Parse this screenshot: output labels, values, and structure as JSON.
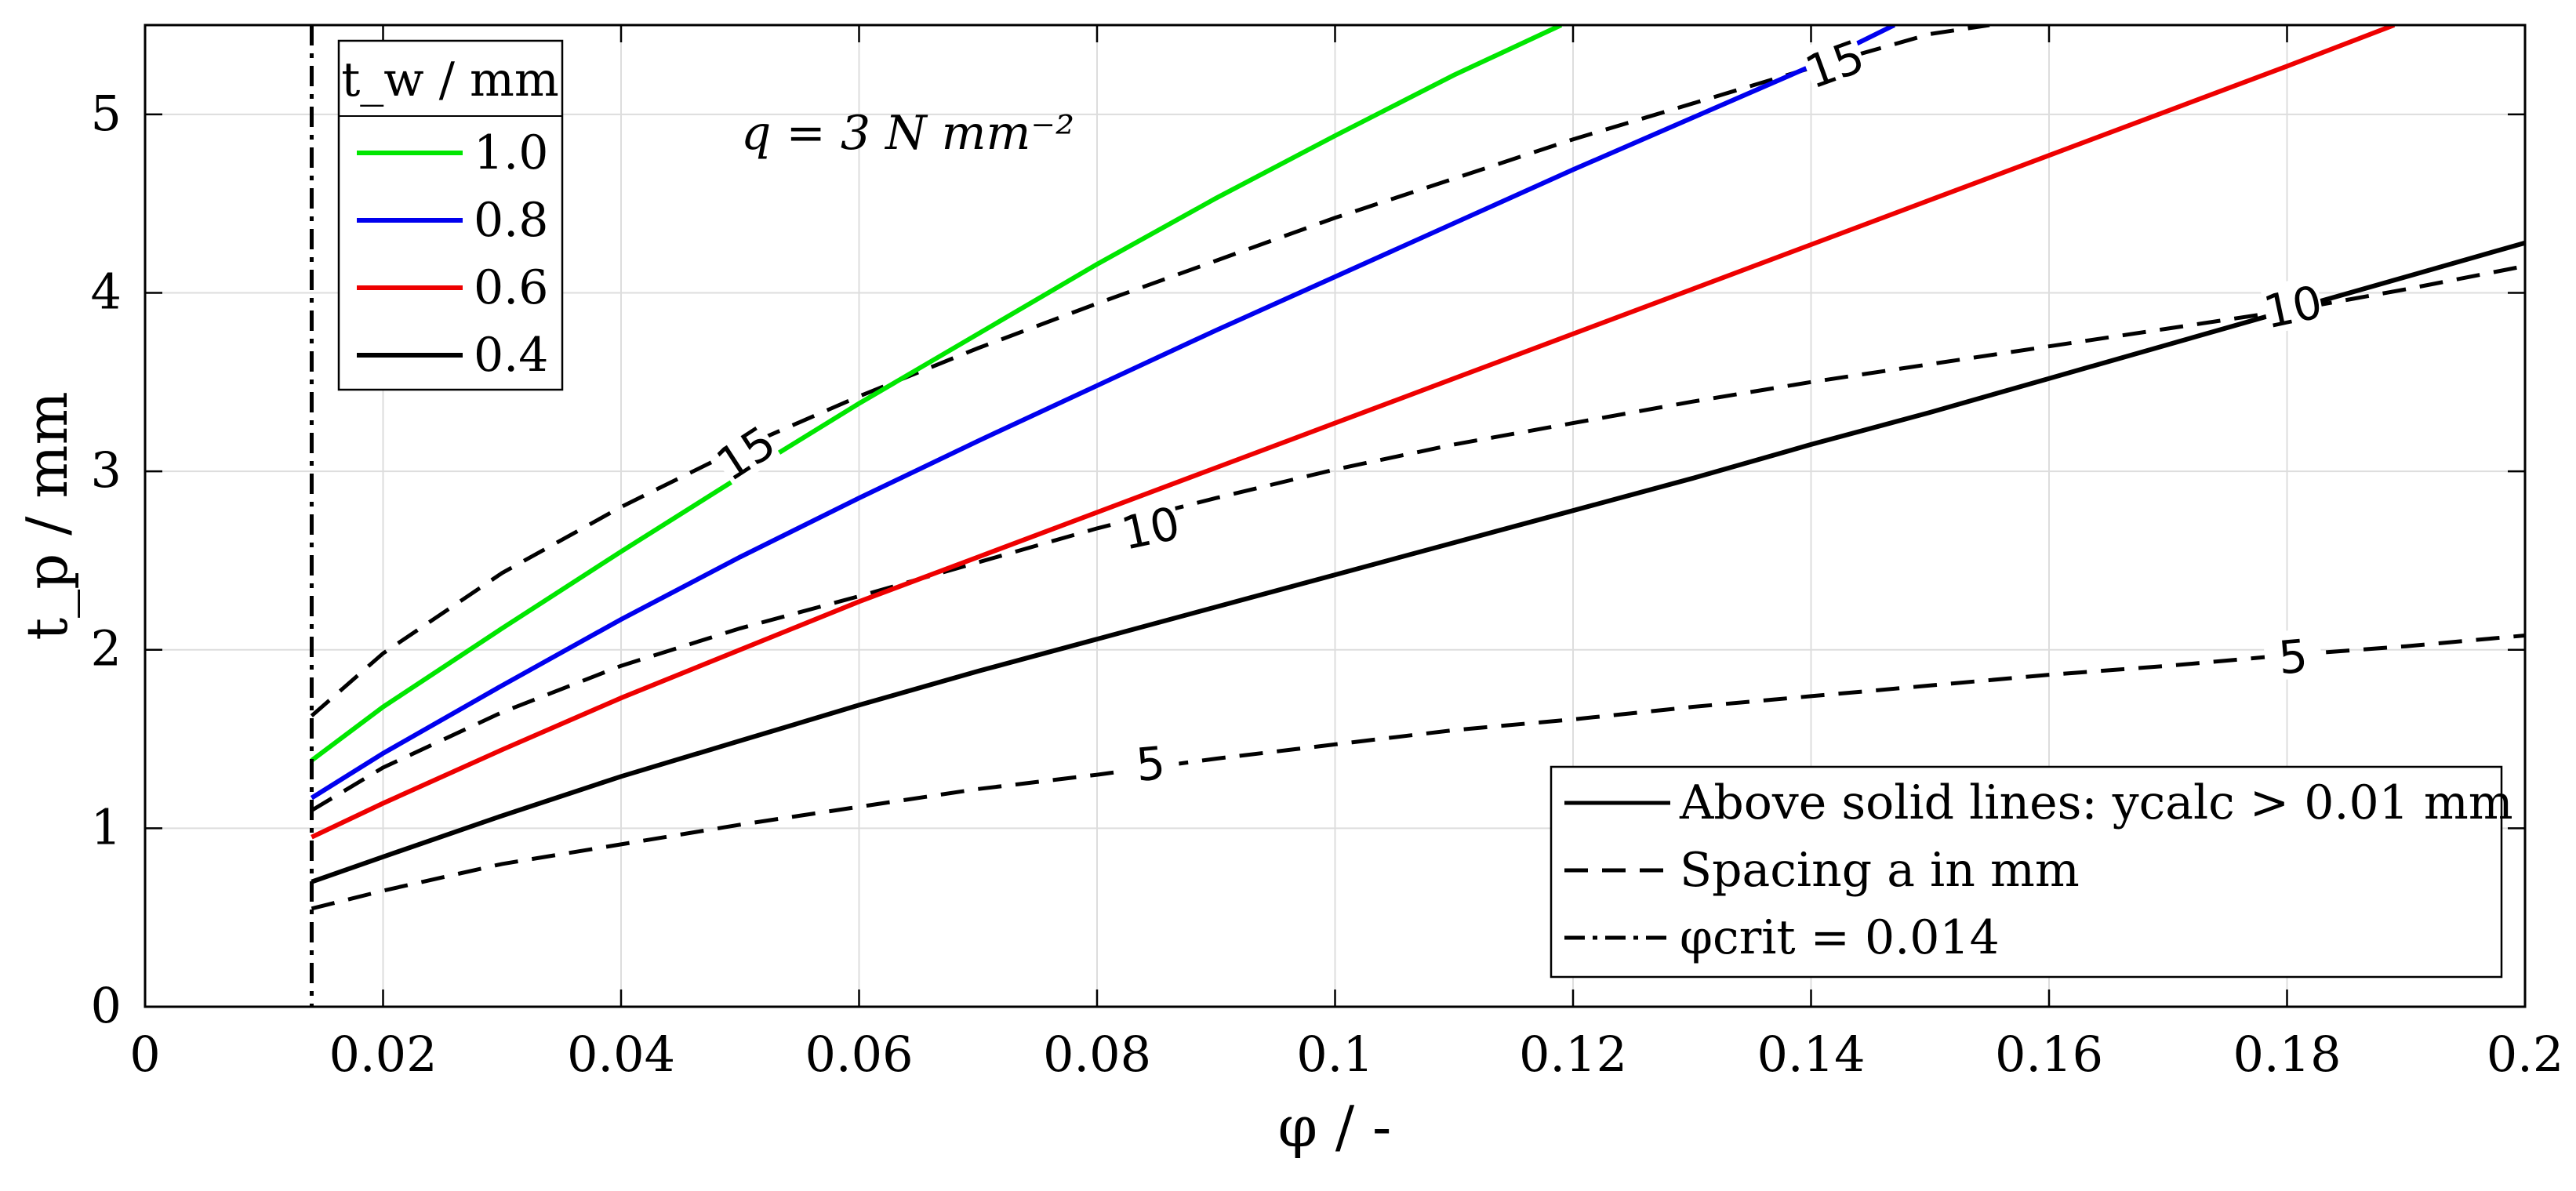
{
  "chart_data": {
    "type": "line",
    "annotation": "q = 3 N mm⁻²",
    "xlabel": "φ / -",
    "ylabel": "t_p / mm",
    "xlim": [
      0,
      0.2
    ],
    "ylim": [
      0,
      5.5
    ],
    "xticks": [
      0,
      0.02,
      0.04,
      0.06,
      0.08,
      0.1,
      0.12,
      0.14,
      0.16,
      0.18,
      0.2
    ],
    "xtick_labels": [
      "0",
      "0.02",
      "0.04",
      "0.06",
      "0.08",
      "0.1",
      "0.12",
      "0.14",
      "0.16",
      "0.18",
      "0.2"
    ],
    "yticks": [
      0,
      1,
      2,
      3,
      4,
      5
    ],
    "ytick_labels": [
      "0",
      "1",
      "2",
      "3",
      "4",
      "5"
    ],
    "grid": true,
    "legend_title": "t_w / mm",
    "series": [
      {
        "name": "1.0",
        "color": "#00e600",
        "style": "solid",
        "x": [
          0.014,
          0.02,
          0.03,
          0.04,
          0.05,
          0.06,
          0.07,
          0.08,
          0.09,
          0.1,
          0.11,
          0.119
        ],
        "y": [
          1.38,
          1.68,
          2.12,
          2.55,
          2.97,
          3.38,
          3.77,
          4.16,
          4.53,
          4.88,
          5.22,
          5.5
        ]
      },
      {
        "name": "0.8",
        "color": "#0000ee",
        "style": "solid",
        "x": [
          0.014,
          0.02,
          0.03,
          0.04,
          0.05,
          0.06,
          0.07,
          0.08,
          0.09,
          0.1,
          0.11,
          0.12,
          0.13,
          0.14,
          0.147
        ],
        "y": [
          1.17,
          1.42,
          1.8,
          2.17,
          2.52,
          2.85,
          3.17,
          3.48,
          3.79,
          4.09,
          4.39,
          4.69,
          4.98,
          5.27,
          5.5
        ]
      },
      {
        "name": "0.6",
        "color": "#ee0000",
        "style": "solid",
        "x": [
          0.014,
          0.02,
          0.03,
          0.04,
          0.05,
          0.06,
          0.07,
          0.08,
          0.09,
          0.1,
          0.11,
          0.12,
          0.13,
          0.14,
          0.15,
          0.16,
          0.17,
          0.18,
          0.189
        ],
        "y": [
          0.95,
          1.14,
          1.44,
          1.73,
          2.0,
          2.27,
          2.52,
          2.77,
          3.02,
          3.27,
          3.52,
          3.77,
          4.02,
          4.27,
          4.52,
          4.77,
          5.02,
          5.27,
          5.5
        ]
      },
      {
        "name": "0.4",
        "color": "#000000",
        "style": "solid",
        "x": [
          0.014,
          0.02,
          0.03,
          0.04,
          0.05,
          0.06,
          0.07,
          0.08,
          0.09,
          0.1,
          0.11,
          0.12,
          0.13,
          0.14,
          0.15,
          0.16,
          0.17,
          0.18,
          0.19,
          0.2
        ],
        "y": [
          0.7,
          0.84,
          1.07,
          1.29,
          1.49,
          1.69,
          1.88,
          2.06,
          2.24,
          2.42,
          2.6,
          2.78,
          2.96,
          3.15,
          3.33,
          3.52,
          3.71,
          3.9,
          4.09,
          4.28
        ]
      }
    ],
    "contours": [
      {
        "name": "15",
        "label": "15",
        "style": "dashed",
        "x": [
          0.014,
          0.02,
          0.03,
          0.04,
          0.05,
          0.06,
          0.07,
          0.08,
          0.09,
          0.1,
          0.11,
          0.12,
          0.13,
          0.14,
          0.15,
          0.155
        ],
        "y": [
          1.63,
          1.98,
          2.43,
          2.8,
          3.13,
          3.42,
          3.69,
          3.94,
          4.18,
          4.42,
          4.64,
          4.86,
          5.06,
          5.26,
          5.45,
          5.5
        ],
        "label_positions": [
          {
            "x": 0.0505,
            "y": 3.1,
            "angle": -33
          },
          {
            "x": 0.142,
            "y": 5.28,
            "angle": -20
          }
        ]
      },
      {
        "name": "10",
        "label": "10",
        "style": "dashed",
        "x": [
          0.014,
          0.02,
          0.03,
          0.04,
          0.05,
          0.06,
          0.07,
          0.08,
          0.09,
          0.1,
          0.11,
          0.12,
          0.13,
          0.14,
          0.15,
          0.16,
          0.17,
          0.18,
          0.19,
          0.2
        ],
        "y": [
          1.1,
          1.34,
          1.65,
          1.91,
          2.12,
          2.3,
          2.49,
          2.68,
          2.85,
          3.01,
          3.15,
          3.27,
          3.39,
          3.5,
          3.6,
          3.7,
          3.8,
          3.9,
          4.02,
          4.15
        ],
        "label_positions": [
          {
            "x": 0.0845,
            "y": 2.68,
            "angle": -12
          },
          {
            "x": 0.1805,
            "y": 3.92,
            "angle": -12
          }
        ]
      },
      {
        "name": "5",
        "label": "5",
        "style": "dashed",
        "x": [
          0.014,
          0.02,
          0.03,
          0.04,
          0.05,
          0.06,
          0.07,
          0.08,
          0.09,
          0.1,
          0.11,
          0.12,
          0.13,
          0.14,
          0.15,
          0.16,
          0.17,
          0.18,
          0.19,
          0.2
        ],
        "y": [
          0.55,
          0.65,
          0.8,
          0.91,
          1.02,
          1.12,
          1.22,
          1.3,
          1.39,
          1.47,
          1.55,
          1.61,
          1.68,
          1.74,
          1.8,
          1.86,
          1.91,
          1.97,
          2.02,
          2.08
        ],
        "label_positions": [
          {
            "x": 0.0845,
            "y": 1.36,
            "angle": -5
          },
          {
            "x": 0.1805,
            "y": 1.96,
            "angle": -5
          }
        ]
      }
    ],
    "critical_line": {
      "x": 0.014,
      "label": "φcrit = 0.014"
    },
    "legend2": [
      {
        "style": "solid",
        "label": "Above solid lines: ycalc > 0.01 mm"
      },
      {
        "style": "dashed",
        "label": "Spacing a in mm"
      },
      {
        "style": "dashdot",
        "label": "φcrit = 0.014"
      }
    ]
  }
}
